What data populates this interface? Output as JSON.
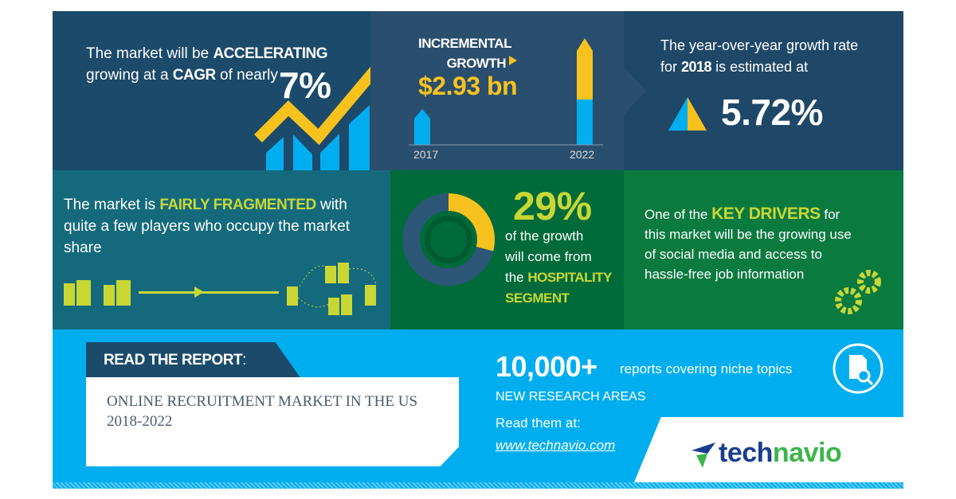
{
  "colors": {
    "navy": "#1b4a6b",
    "slate": "#2a4e6e",
    "teal": "#146a7c",
    "green_dark": "#006b3a",
    "green": "#0b7a3f",
    "blue": "#00aeef",
    "yellow": "#f7c21e",
    "lime": "#c9d735"
  },
  "cagr": {
    "pre1": "The market will be ",
    "bold1": "ACCELERATING",
    "pre2": "growing at a ",
    "bold2": "CAGR",
    "post2": " of nearly",
    "value": "7%"
  },
  "incremental": {
    "line1": "INCREMENTAL",
    "line2": "GROWTH",
    "value": "$2.93 bn",
    "year_start": "2017",
    "year_end": "2022"
  },
  "yoy": {
    "line1": "The year-over-year growth rate",
    "pre2": "for ",
    "year": "2018",
    "post2": " is estimated at",
    "value": "5.72%"
  },
  "fragmented": {
    "pre1": "The market is ",
    "bold1": "FAIRLY FRAGMENTED",
    "post1": " with",
    "line2": "quite a few players who occupy the market",
    "line3": "share"
  },
  "segment": {
    "value": "29%",
    "share": 29,
    "line1": "of the growth",
    "line2": "will come from",
    "pre3": "the ",
    "bold3": "HOSPITALITY",
    "bold4": "SEGMENT"
  },
  "drivers": {
    "pre1": "One of the ",
    "bold1": "KEY DRIVERS",
    "post1": " for",
    "line2": "this market will be the growing use",
    "line3": "of social media and access to",
    "line4": "hassle-free job information"
  },
  "report": {
    "label": "READ THE REPORT",
    "colon": ":",
    "title_line1": "ONLINE RECRUITMENT MARKET IN THE US",
    "title_line2": "2018-2022"
  },
  "promo": {
    "count": "10,000+",
    "count_desc": "reports covering niche topics",
    "areas": "NEW RESEARCH AREAS",
    "read": "Read them at:",
    "url": "www.technavio.com"
  },
  "logo": {
    "part1": "tech",
    "part2": "navio"
  }
}
